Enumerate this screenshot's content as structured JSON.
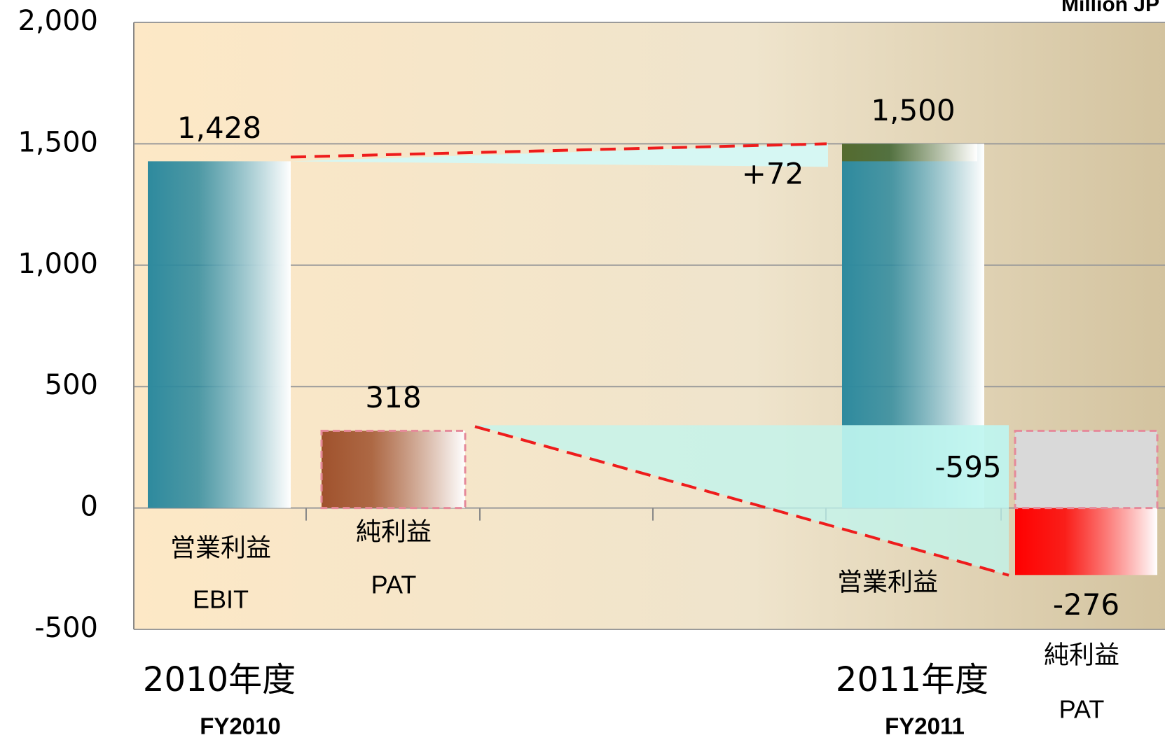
{
  "chart_data": {
    "type": "waterfall",
    "unit_label": "Million JP",
    "ylim": [
      -500,
      2000
    ],
    "yticks": [
      -500,
      0,
      500,
      {
        "value": 1000,
        "label": "1,000"
      },
      {
        "value": 1500,
        "label": "1,500"
      },
      {
        "value": 2000,
        "label": "2,000"
      }
    ],
    "grid": true,
    "negative_color": "#ff0000",
    "bars": [
      {
        "label": "営業利益",
        "sublabel": "EBIT",
        "value": 1428,
        "value_label": "1,428",
        "color": "#2e8a9e"
      },
      {
        "label": "純利益",
        "sublabel": "PAT",
        "value": 318,
        "color": "#a0522d"
      },
      {
        "label": "営業利益",
        "value": 1500,
        "value_label": "1,500",
        "color": "#2e8a9e"
      },
      {
        "label": "純利益",
        "sublabel": "PAT",
        "value": -276,
        "color": "#ff0000"
      }
    ],
    "deltas": [
      {
        "value": 72,
        "value_label": "+72",
        "color": "#556b2f"
      },
      {
        "value": -595,
        "color": "#bff5ef"
      }
    ],
    "groups": [
      {
        "label": "2010年度",
        "sublabel": "FY2010"
      },
      {
        "label": "2011年度",
        "sublabel": "FY2011"
      }
    ]
  }
}
